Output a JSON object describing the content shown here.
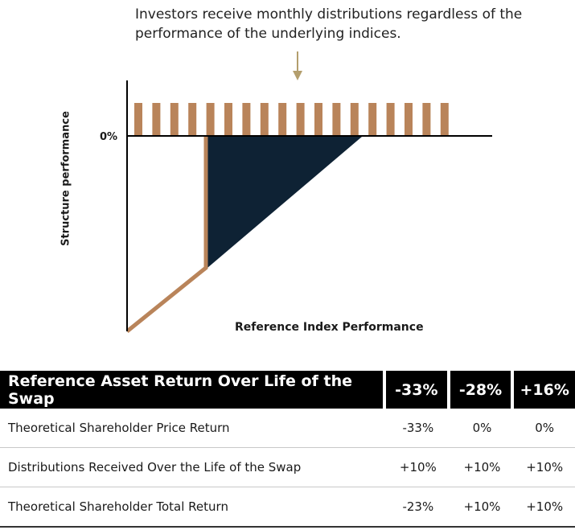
{
  "annotation": "Investors receive monthly distributions regardless of the performance of the underlying indices.",
  "chart_data": {
    "type": "line",
    "ylabel": "Structure performance",
    "xlabel": "Reference Index Performance",
    "y_tick_labels": [
      "0%"
    ],
    "distribution_bar_count": 18,
    "colors": {
      "bars": "#b9845a",
      "payoff_line": "#b9845a",
      "protected_area": "#0e2234",
      "axes": "#000000",
      "arrow": "#b39e6d"
    }
  },
  "table": {
    "header": {
      "label": "Reference Asset Return Over Life of the Swap",
      "values": [
        "-33%",
        "-28%",
        "+16%"
      ]
    },
    "rows": [
      {
        "label": "Theoretical Shareholder Price Return",
        "values": [
          "-33%",
          "0%",
          "0%"
        ]
      },
      {
        "label": "Distributions Received Over the Life of the Swap",
        "values": [
          "+10%",
          "+10%",
          "+10%"
        ]
      },
      {
        "label": "Theoretical Shareholder Total Return",
        "values": [
          "-23%",
          "+10%",
          "+10%"
        ]
      }
    ]
  }
}
